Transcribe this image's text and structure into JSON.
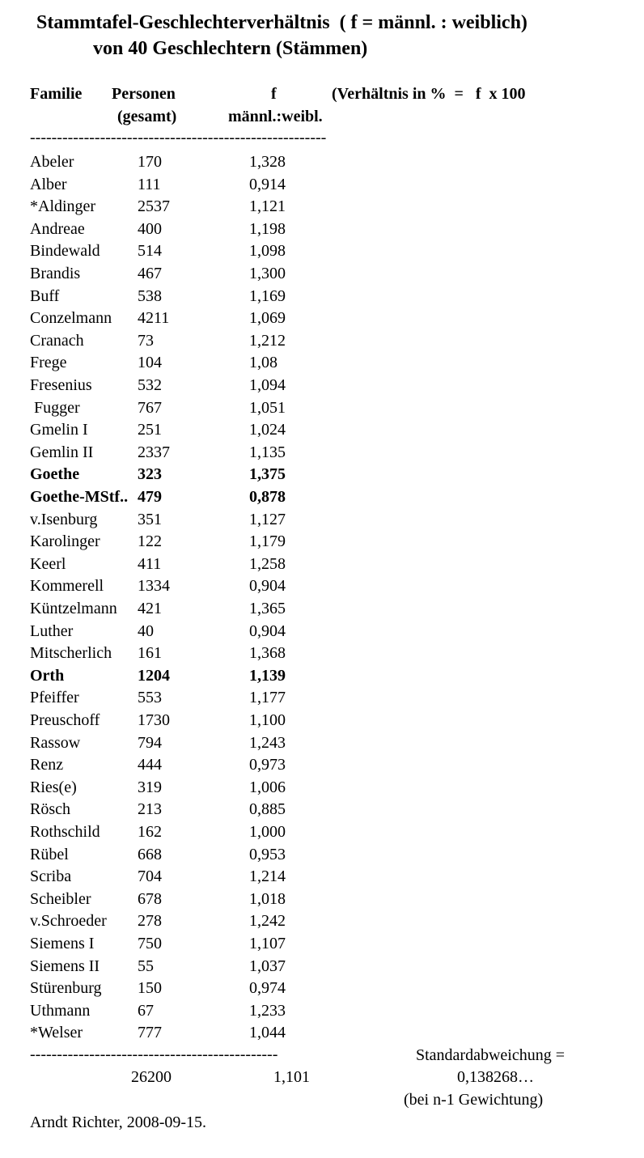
{
  "title_line1": "Stammtafel-Geschlechterverhältnis  ( f = männl. : weiblich)",
  "title_line2": "von 40 Geschlechtern (Stämmen)",
  "headers": {
    "familie": "Familie",
    "personen": "Personen",
    "personen_sub": "(gesamt)",
    "f": "f",
    "f_sub": "männl.:weibl.",
    "note": "(Verhältnis in %  =   f  x 100"
  },
  "separator": "-------------------------------------------------------",
  "rows": [
    {
      "name": "Abeler",
      "persons": "170",
      "f": "1,328",
      "bold": false
    },
    {
      "name": "Alber",
      "persons": "111",
      "f": "0,914",
      "bold": false
    },
    {
      "name": "*Aldinger",
      "persons": "2537",
      "f": "1,121",
      "bold": false
    },
    {
      "name": "Andreae",
      "persons": "400",
      "f": "1,198",
      "bold": false
    },
    {
      "name": "Bindewald",
      "persons": "514",
      "f": "1,098",
      "bold": false
    },
    {
      "name": "Brandis",
      "persons": "467",
      "f": "1,300",
      "bold": false
    },
    {
      "name": "Buff",
      "persons": "538",
      "f": "1,169",
      "bold": false
    },
    {
      "name": "Conzelmann",
      "persons": "4211",
      "f": "1,069",
      "bold": false
    },
    {
      "name": "Cranach",
      "persons": "73",
      "f": "1,212",
      "bold": false
    },
    {
      "name": "Frege",
      "persons": "104",
      "f": "1,08",
      "bold": false
    },
    {
      "name": "Fresenius",
      "persons": "532",
      "f": "1,094",
      "bold": false
    },
    {
      "name": " Fugger",
      "persons": "767",
      "f": "1,051",
      "bold": false
    },
    {
      "name": "Gmelin I",
      "persons": "251",
      "f": "1,024",
      "bold": false
    },
    {
      "name": "Gemlin II",
      "persons": "2337",
      "f": "1,135",
      "bold": false
    },
    {
      "name": "Goethe",
      "persons": "323",
      "f": "1,375",
      "bold": true
    },
    {
      "name": "Goethe-MStf..",
      "persons": "479",
      "f": "0,878",
      "bold": true
    },
    {
      "name": "v.Isenburg",
      "persons": "351",
      "f": "1,127",
      "bold": false
    },
    {
      "name": "Karolinger",
      "persons": "122",
      "f": "1,179",
      "bold": false
    },
    {
      "name": "Keerl",
      "persons": "411",
      "f": "1,258",
      "bold": false
    },
    {
      "name": "Kommerell",
      "persons": "1334",
      "f": "0,904",
      "bold": false
    },
    {
      "name": "Küntzelmann",
      "persons": "421",
      "f": "1,365",
      "bold": false
    },
    {
      "name": "Luther",
      "persons": "40",
      "f": "0,904",
      "bold": false
    },
    {
      "name": "Mitscherlich",
      "persons": "161",
      "f": "1,368",
      "bold": false
    },
    {
      "name": "Orth",
      "persons": "1204",
      "f": "1,139",
      "bold": true
    },
    {
      "name": "Pfeiffer",
      "persons": "553",
      "f": "1,177",
      "bold": false
    },
    {
      "name": "Preuschoff",
      "persons": "1730",
      "f": "1,100",
      "bold": false
    },
    {
      "name": "Rassow",
      "persons": "794",
      "f": "1,243",
      "bold": false
    },
    {
      "name": "Renz",
      "persons": "444",
      "f": "0,973",
      "bold": false
    },
    {
      "name": "Ries(e)",
      "persons": "319",
      "f": "1,006",
      "bold": false
    },
    {
      "name": "Rösch",
      "persons": "213",
      "f": "0,885",
      "bold": false
    },
    {
      "name": "Rothschild",
      "persons": "162",
      "f": "1,000",
      "bold": false
    },
    {
      "name": "Rübel",
      "persons": "668",
      "f": "0,953",
      "bold": false
    },
    {
      "name": "Scriba",
      "persons": "704",
      "f": "1,214",
      "bold": false
    },
    {
      "name": "Scheibler",
      "persons": "678",
      "f": "1,018",
      "bold": false
    },
    {
      "name": "v.Schroeder",
      "persons": "278",
      "f": "1,242",
      "bold": false
    },
    {
      "name": "Siemens I",
      "persons": "750",
      "f": "1,107",
      "bold": false
    },
    {
      "name": "Siemens II",
      "persons": "55",
      "f": "1,037",
      "bold": false
    },
    {
      "name": "Stürenburg",
      "persons": "150",
      "f": "0,974",
      "bold": false
    },
    {
      "name": "Uthmann",
      "persons": "67",
      "f": "1,233",
      "bold": false
    },
    {
      "name": "*Welser",
      "persons": "777",
      "f": "1,044",
      "bold": false
    }
  ],
  "separator_bottom": "----------------------------------------------",
  "total": {
    "persons": "26200",
    "f": "1,101"
  },
  "stddev": {
    "label": "Standardabweichung =",
    "value": "0,138268…",
    "note": "(bei n-1 Gewichtung)"
  },
  "footer": "Arndt Richter, 2008-09-15."
}
